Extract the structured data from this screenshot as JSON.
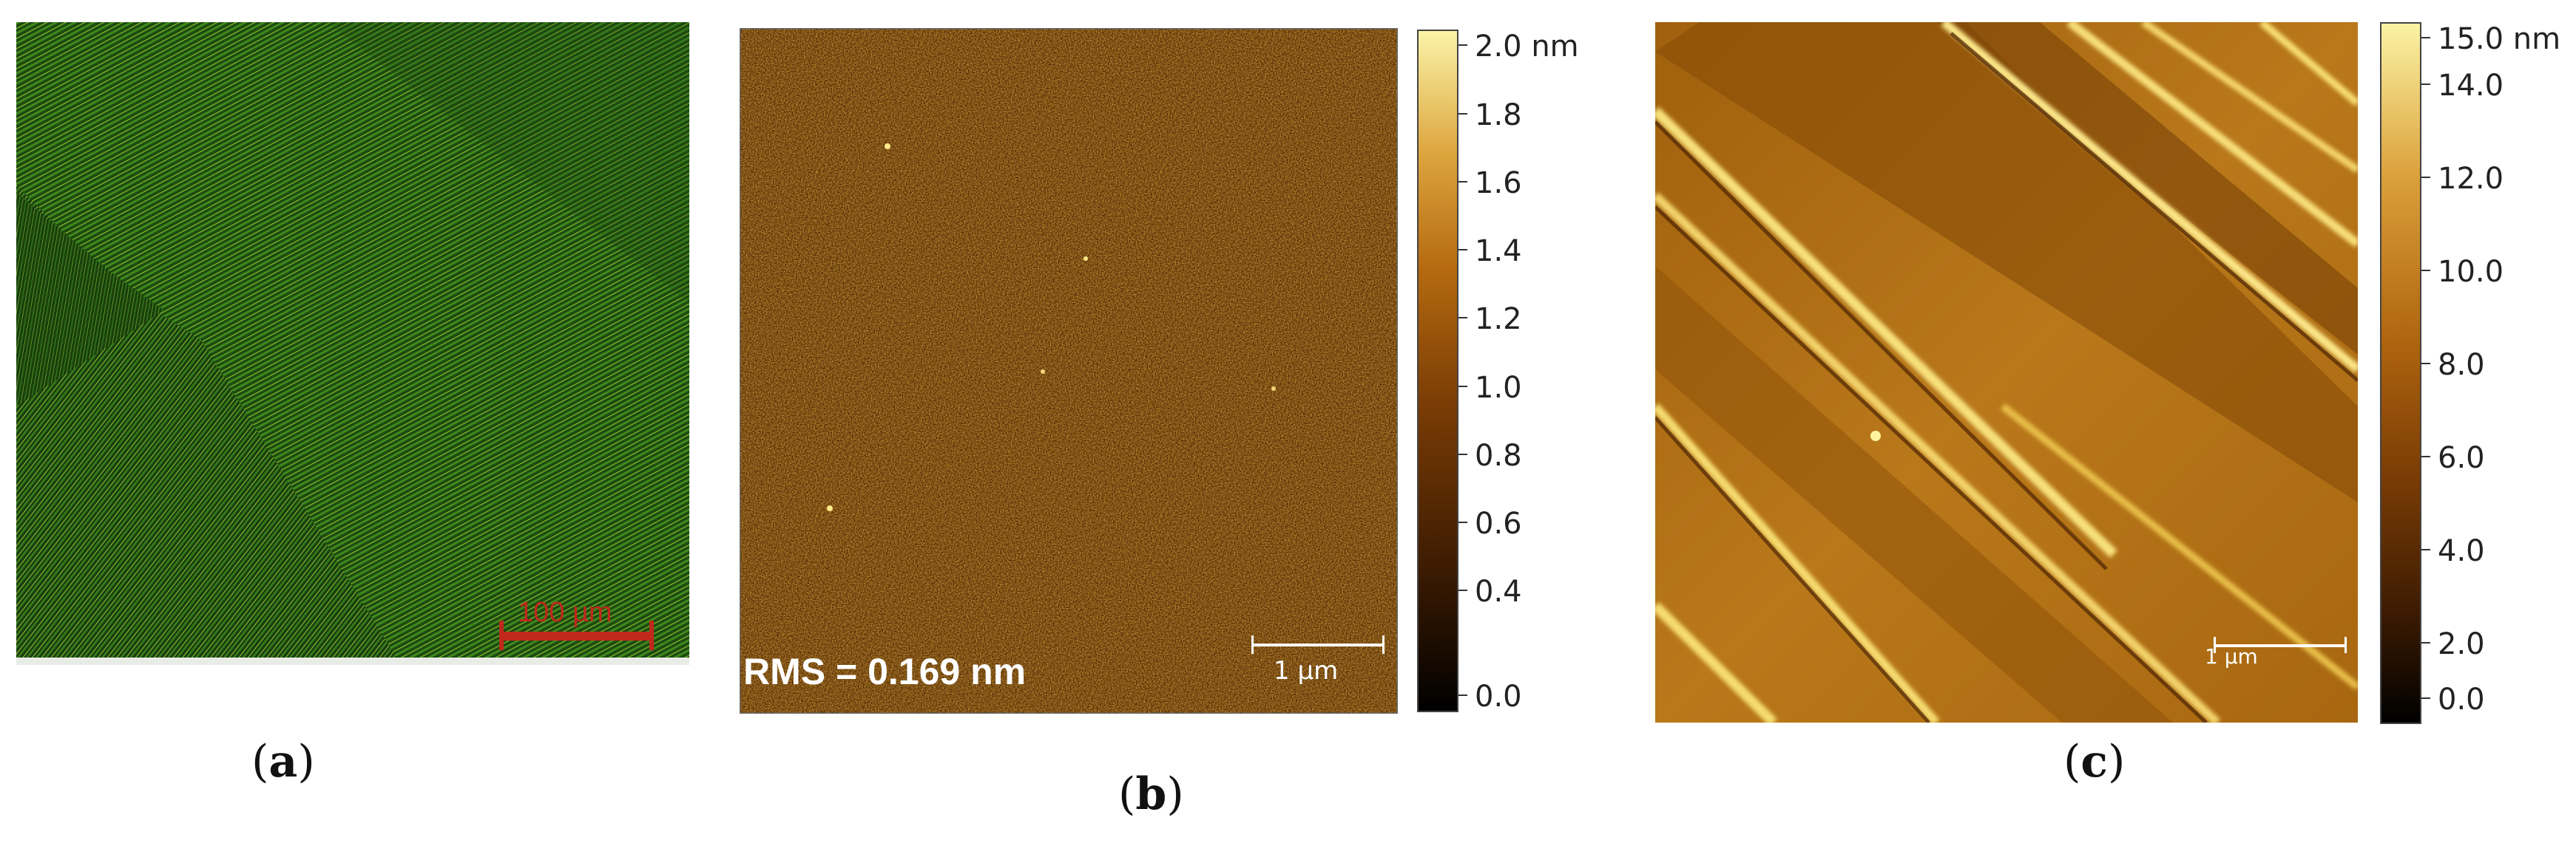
{
  "panels": [
    {
      "id": "a",
      "caption_letter": "a",
      "scalebar_label": "100 µm"
    },
    {
      "id": "b",
      "caption_letter": "b",
      "scalebar_label": "1 µm",
      "rms_text": "RMS = 0.169 nm",
      "colorbar": {
        "max_label": "2.0 nm",
        "ticks": [
          "1.8",
          "1.6",
          "1.4",
          "1.2",
          "1.0",
          "0.8",
          "0.6",
          "0.4",
          "0.0"
        ]
      }
    },
    {
      "id": "c",
      "caption_letter": "c",
      "scalebar_label": "1 µm",
      "colorbar": {
        "max_label": "15.0 nm",
        "ticks": [
          "14.0",
          "12.0",
          "10.0",
          "8.0",
          "6.0",
          "4.0",
          "2.0",
          "0.0"
        ]
      }
    }
  ],
  "colors": {
    "green": "#3f8a1e",
    "afm_dark": "#1a0a00",
    "afm_mid": "#8a4a06",
    "afm_light": "#f6ec8a",
    "scalebar_red": "#c0281c"
  }
}
